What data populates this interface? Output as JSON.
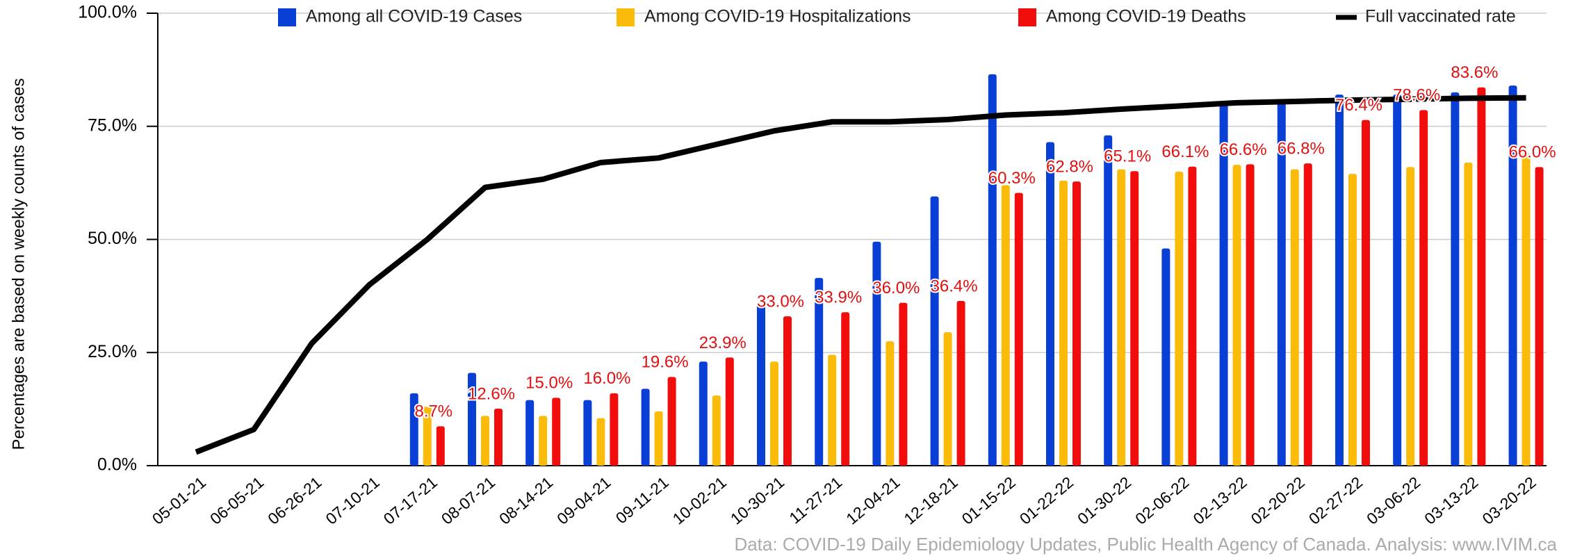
{
  "chart_data": {
    "type": "bar_line",
    "y_axis_label": "Percentages are based on weekly counts of cases",
    "source": "Data: COVID-19 Daily Epidemiology Updates, Public Health Agency of Canada. Analysis: www.IVIM.ca",
    "categories": [
      "05-01-21",
      "06-05-21",
      "06-26-21",
      "07-10-21",
      "07-17-21",
      "08-07-21",
      "08-14-21",
      "09-04-21",
      "09-11-21",
      "10-02-21",
      "10-30-21",
      "11-27-21",
      "12-04-21",
      "12-18-21",
      "01-15-22",
      "01-22-22",
      "01-30-22",
      "02-06-22",
      "02-13-22",
      "02-20-22",
      "02-27-22",
      "03-06-22",
      "03-13-22",
      "03-20-22"
    ],
    "series": [
      {
        "name": "Among all COVID-19 Cases",
        "type": "bar",
        "color": "#0a3fd6",
        "values": [
          null,
          null,
          null,
          null,
          16,
          20.5,
          14.5,
          14.5,
          17,
          23,
          35.5,
          41.5,
          49.5,
          59.5,
          86.5,
          71.5,
          73,
          48,
          80,
          81,
          82,
          82,
          82.5,
          84
        ]
      },
      {
        "name": "Among COVID-19 Hospitalizations",
        "type": "bar",
        "color": "#fbbb0b",
        "values": [
          null,
          null,
          null,
          null,
          13,
          11,
          11,
          10.5,
          12,
          15.5,
          23,
          24.5,
          27.5,
          29.5,
          62,
          63,
          65.5,
          65,
          66.5,
          65.5,
          64.5,
          66,
          67,
          69
        ]
      },
      {
        "name": "Among COVID-19 Deaths",
        "type": "bar",
        "color": "#f20d0d",
        "values": [
          null,
          null,
          null,
          null,
          8.7,
          12.6,
          15.0,
          16.0,
          19.6,
          23.9,
          33.0,
          33.9,
          36.0,
          36.4,
          60.3,
          62.8,
          65.1,
          66.1,
          66.6,
          66.8,
          76.4,
          78.6,
          83.6,
          66.0
        ],
        "value_labels": [
          null,
          null,
          null,
          null,
          "8.7%",
          "12.6%",
          "15.0%",
          "16.0%",
          "19.6%",
          "23.9%",
          "33.0%",
          "33.9%",
          "36.0%",
          "36.4%",
          "60.3%",
          "62.8%",
          "65.1%",
          "66.1%",
          "66.6%",
          "66.8%",
          "76.4%",
          "78.6%",
          "83.6%",
          "66.0%"
        ]
      },
      {
        "name": "Full vaccinated rate",
        "type": "line",
        "color": "#000000",
        "values": [
          3,
          8,
          27,
          40,
          50,
          61.5,
          63.3,
          67,
          68,
          71,
          74,
          76,
          76,
          76.5,
          77.5,
          78,
          78.8,
          79.5,
          80.2,
          80.5,
          80.8,
          81,
          81.2,
          81.3
        ]
      }
    ],
    "ylim": [
      0,
      100
    ],
    "yticks": [
      {
        "value": 0,
        "label": "0.0%"
      },
      {
        "value": 25,
        "label": "25.0%"
      },
      {
        "value": 50,
        "label": "50.0%"
      },
      {
        "value": 75,
        "label": "75.0%"
      },
      {
        "value": 100,
        "label": "100.0%"
      }
    ],
    "grid": true,
    "legend": "top"
  }
}
